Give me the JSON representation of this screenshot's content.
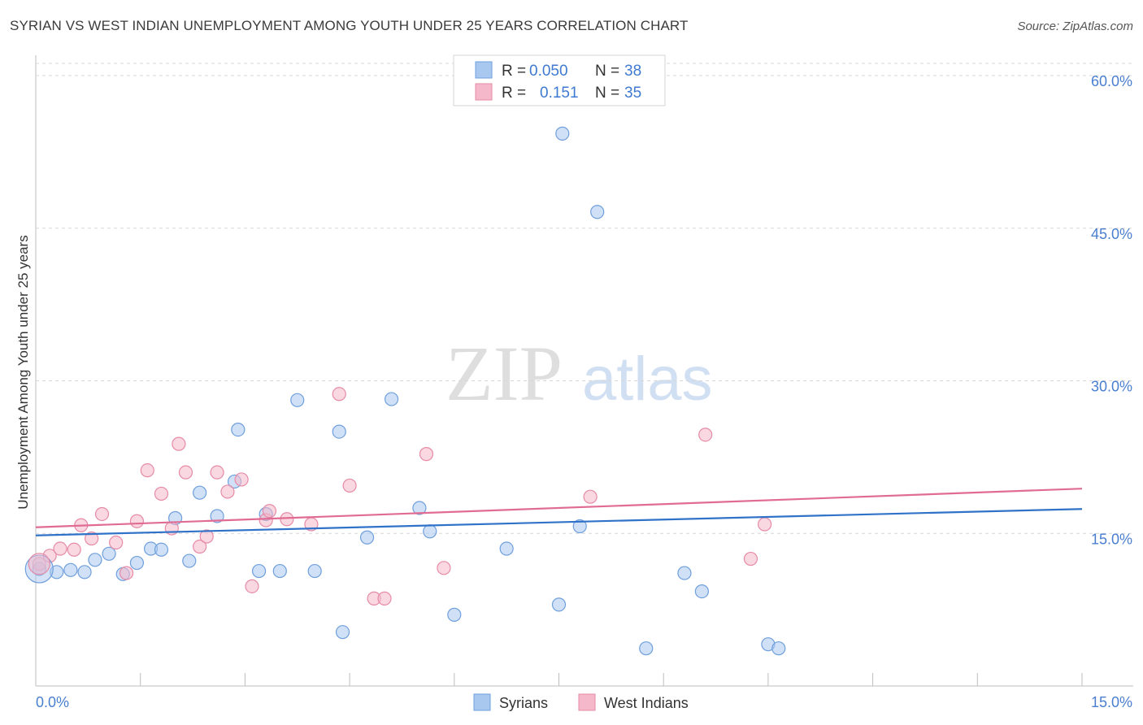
{
  "header": {
    "title": "SYRIAN VS WEST INDIAN UNEMPLOYMENT AMONG YOUTH UNDER 25 YEARS CORRELATION CHART",
    "source": "Source: ZipAtlas.com"
  },
  "watermark": {
    "zip": "ZIP",
    "atlas": "atlas"
  },
  "colors": {
    "syrians_fill": "#a9c8f0",
    "syrians_stroke": "#6f9fdc",
    "syrians_line": "#2f72c8",
    "westindians_fill": "#f5b8ca",
    "westindians_stroke": "#e68aa6",
    "westindians_line": "#e06c93",
    "tick_label": "#4a7fd0",
    "grid": "#d7d7d7"
  },
  "legend_top": {
    "rows": [
      {
        "r_label": "R = ",
        "r_value": "0.050",
        "n_label": "N = ",
        "n_value": "38"
      },
      {
        "r_label": "R = ",
        "r_value": "0.151",
        "n_label": "N = ",
        "n_value": "35"
      }
    ]
  },
  "chart_data": {
    "type": "scatter",
    "title": "SYRIAN VS WEST INDIAN UNEMPLOYMENT AMONG YOUTH UNDER 25 YEARS CORRELATION CHART",
    "xlabel": "",
    "ylabel": "Unemployment Among Youth under 25 years",
    "xlim": [
      0,
      15
    ],
    "ylim": [
      0,
      62
    ],
    "x_tick_labels": [
      "0.0%",
      "15.0%"
    ],
    "y_ticks": [
      15,
      30,
      45,
      60
    ],
    "y_tick_labels": [
      "15.0%",
      "30.0%",
      "45.0%",
      "60.0%"
    ],
    "grid": true,
    "legend": "bottom-center",
    "series": [
      {
        "name": "Syrians",
        "r": 0.05,
        "n": 38,
        "trend": [
          [
            0,
            14.8
          ],
          [
            15,
            17.4
          ]
        ],
        "points": [
          [
            0.05,
            11.5
          ],
          [
            0.3,
            11.2
          ],
          [
            0.5,
            11.4
          ],
          [
            0.7,
            11.2
          ],
          [
            0.85,
            12.4
          ],
          [
            1.05,
            13.0
          ],
          [
            1.25,
            11.0
          ],
          [
            1.45,
            12.1
          ],
          [
            1.65,
            13.5
          ],
          [
            1.8,
            13.4
          ],
          [
            2.0,
            16.5
          ],
          [
            2.2,
            12.3
          ],
          [
            2.35,
            19.0
          ],
          [
            2.6,
            16.7
          ],
          [
            2.85,
            20.1
          ],
          [
            2.9,
            25.2
          ],
          [
            3.2,
            11.3
          ],
          [
            3.3,
            16.9
          ],
          [
            3.5,
            11.3
          ],
          [
            3.75,
            28.1
          ],
          [
            4.0,
            11.3
          ],
          [
            4.35,
            25.0
          ],
          [
            4.4,
            5.3
          ],
          [
            4.75,
            14.6
          ],
          [
            5.1,
            28.2
          ],
          [
            5.5,
            17.5
          ],
          [
            5.65,
            15.2
          ],
          [
            6.0,
            7.0
          ],
          [
            6.75,
            13.5
          ],
          [
            7.5,
            8.0
          ],
          [
            7.8,
            15.7
          ],
          [
            7.55,
            54.3
          ],
          [
            8.05,
            46.6
          ],
          [
            8.75,
            3.7
          ],
          [
            9.3,
            11.1
          ],
          [
            9.55,
            9.3
          ],
          [
            10.5,
            4.1
          ],
          [
            10.65,
            3.7
          ]
        ]
      },
      {
        "name": "West Indians",
        "r": 0.151,
        "n": 35,
        "trend": [
          [
            0,
            15.6
          ],
          [
            15,
            19.4
          ]
        ],
        "points": [
          [
            0.05,
            12.0
          ],
          [
            0.2,
            12.8
          ],
          [
            0.35,
            13.5
          ],
          [
            0.55,
            13.4
          ],
          [
            0.65,
            15.8
          ],
          [
            0.8,
            14.5
          ],
          [
            0.95,
            16.9
          ],
          [
            1.15,
            14.1
          ],
          [
            1.3,
            11.1
          ],
          [
            1.45,
            16.2
          ],
          [
            1.6,
            21.2
          ],
          [
            1.8,
            18.9
          ],
          [
            1.95,
            15.5
          ],
          [
            2.05,
            23.8
          ],
          [
            2.15,
            21.0
          ],
          [
            2.35,
            13.7
          ],
          [
            2.45,
            14.7
          ],
          [
            2.6,
            21.0
          ],
          [
            2.75,
            19.1
          ],
          [
            2.95,
            20.3
          ],
          [
            3.1,
            9.8
          ],
          [
            3.3,
            16.3
          ],
          [
            3.35,
            17.2
          ],
          [
            3.6,
            16.4
          ],
          [
            3.95,
            15.9
          ],
          [
            4.35,
            28.7
          ],
          [
            4.5,
            19.7
          ],
          [
            4.85,
            8.6
          ],
          [
            5.0,
            8.6
          ],
          [
            5.6,
            22.8
          ],
          [
            5.85,
            11.6
          ],
          [
            7.95,
            18.6
          ],
          [
            9.6,
            24.7
          ],
          [
            10.25,
            12.5
          ],
          [
            10.45,
            15.9
          ]
        ]
      }
    ]
  }
}
